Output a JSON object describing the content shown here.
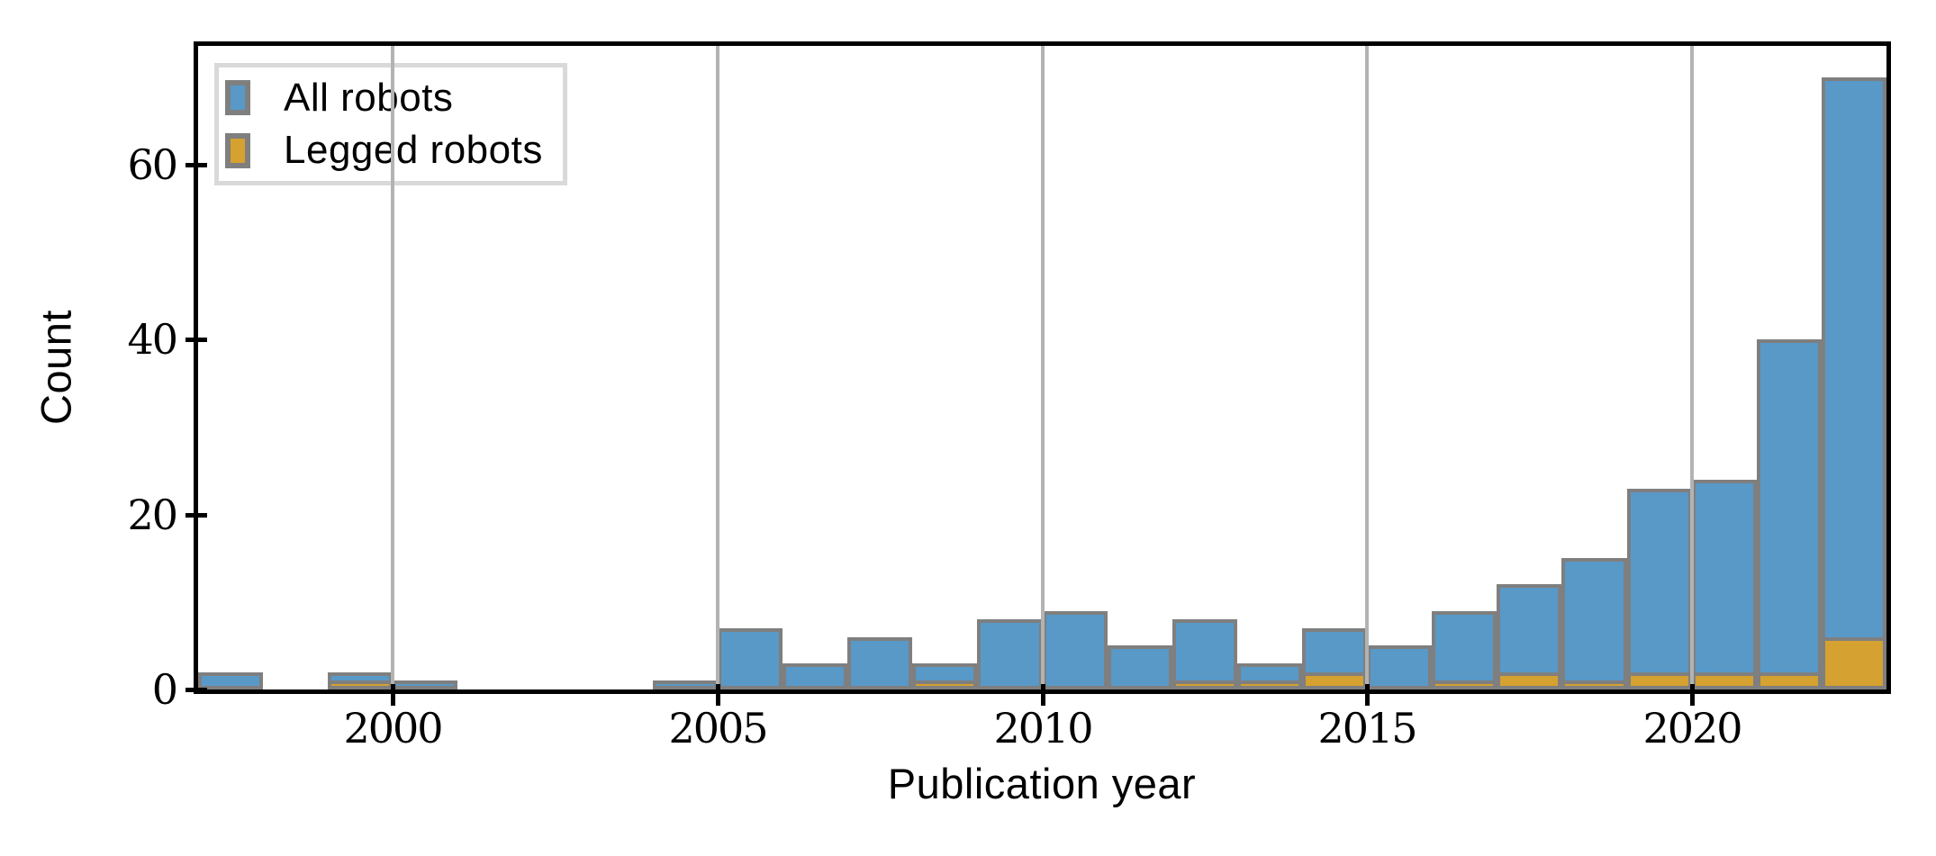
{
  "chart_data": {
    "type": "bar",
    "title": "",
    "xlabel": "Publication year",
    "ylabel": "Count",
    "xlim": [
      1997,
      2023
    ],
    "ylim": [
      0,
      73.6
    ],
    "x_ticks": [
      2000,
      2005,
      2010,
      2015,
      2020
    ],
    "y_ticks": [
      0,
      20,
      40,
      60
    ],
    "grid": "vertical-gridlines-at-x-ticks",
    "legend_position": "upper-left",
    "bin_width_years": 1,
    "bar_edge_color": "#7f7f7f",
    "gridline_color": "#b3b3b3",
    "categories": [
      1997,
      1998,
      1999,
      2000,
      2001,
      2002,
      2003,
      2004,
      2005,
      2006,
      2007,
      2008,
      2009,
      2010,
      2011,
      2012,
      2013,
      2014,
      2015,
      2016,
      2017,
      2018,
      2019,
      2020,
      2021,
      2022
    ],
    "series": [
      {
        "name": "All robots",
        "color": "#5899c8",
        "values": [
          2,
          0,
          2,
          1,
          0,
          0,
          0,
          1,
          7,
          3,
          6,
          3,
          8,
          9,
          5,
          8,
          3,
          7,
          5,
          9,
          12,
          15,
          23,
          24,
          40,
          70
        ]
      },
      {
        "name": "Legged robots",
        "color": "#d5a130",
        "values": [
          0,
          0,
          1,
          0,
          0,
          0,
          0,
          0,
          0,
          0,
          0,
          1,
          0,
          0,
          0,
          1,
          1,
          2,
          0,
          1,
          2,
          1,
          2,
          2,
          2,
          6
        ]
      }
    ]
  },
  "legend": {
    "frame_color": "#d9d9d9",
    "items": [
      {
        "label": "All robots",
        "color": "#5899c8"
      },
      {
        "label": "Legged robots",
        "color": "#d5a130"
      }
    ]
  }
}
